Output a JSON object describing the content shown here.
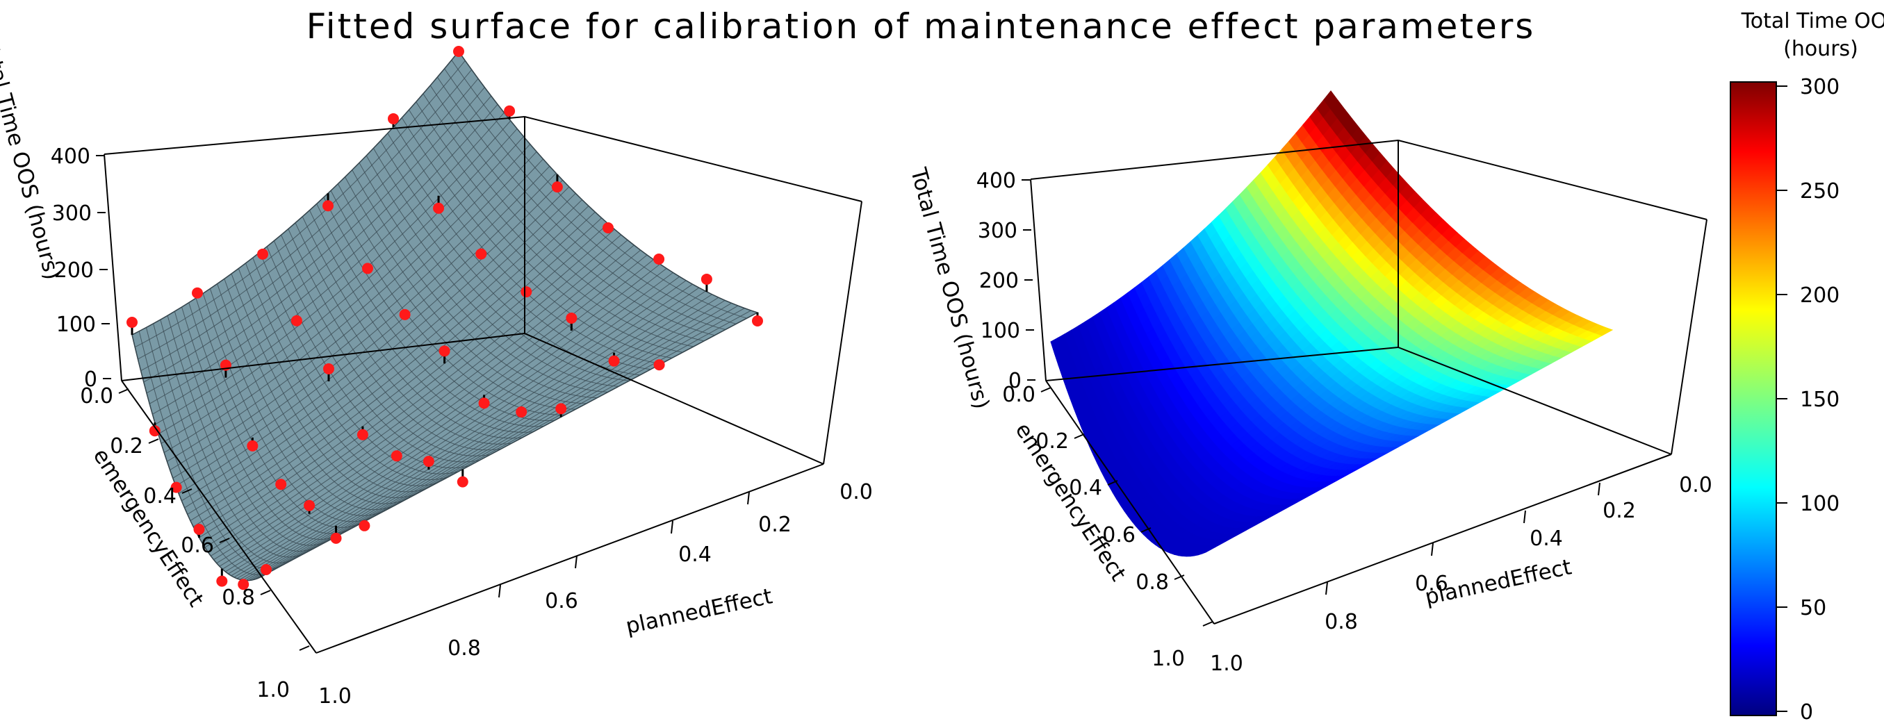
{
  "chart_data": {
    "title": "Fitted surface for calibration of maintenance effect parameters",
    "plots": [
      {
        "name": "observed-and-fitted",
        "type": "surface",
        "zlabel": "Total Time OOS (hours)",
        "xlabel": "plannedEffect",
        "ylabel": "emergencyEffect",
        "zticks": [
          "0",
          "100",
          "200",
          "300",
          "400"
        ],
        "xticks": [
          "0.0",
          "0.2",
          "0.4",
          "0.6",
          "0.8",
          "1.0"
        ],
        "yticks": [
          "0.0",
          "0.2",
          "0.4",
          "0.6",
          "0.8",
          "1.0"
        ],
        "zlim": [
          0,
          400
        ],
        "xlim": [
          0,
          1
        ],
        "ylim": [
          0,
          1
        ],
        "surface_color": "#7a9aa6",
        "point_color": "#ff1a1a",
        "points_note": "observed simulation runs on a 0.1-0.9 grid with residual lines to the fitted surface"
      },
      {
        "name": "fitted-colored",
        "type": "surface",
        "zlabel": "Total Time OOS (hours)",
        "xlabel": "plannedEffect",
        "ylabel": "emergencyEffect",
        "zticks": [
          "0",
          "100",
          "200",
          "300",
          "400"
        ],
        "xticks": [
          "0.0",
          "0.2",
          "0.4",
          "0.6",
          "0.8",
          "1.0"
        ],
        "yticks": [
          "0.0",
          "0.2",
          "0.4",
          "0.6",
          "0.8",
          "1.0"
        ],
        "zlim": [
          0,
          400
        ],
        "xlim": [
          0,
          1
        ],
        "ylim": [
          0,
          1
        ]
      }
    ],
    "colorbar": {
      "title_line1": "Total Time OOS",
      "title_line2": "(hours)",
      "min": 0,
      "max": 300,
      "ticks": [
        "0",
        "50",
        "100",
        "150",
        "200",
        "250",
        "300"
      ],
      "colormap": "jet"
    }
  }
}
